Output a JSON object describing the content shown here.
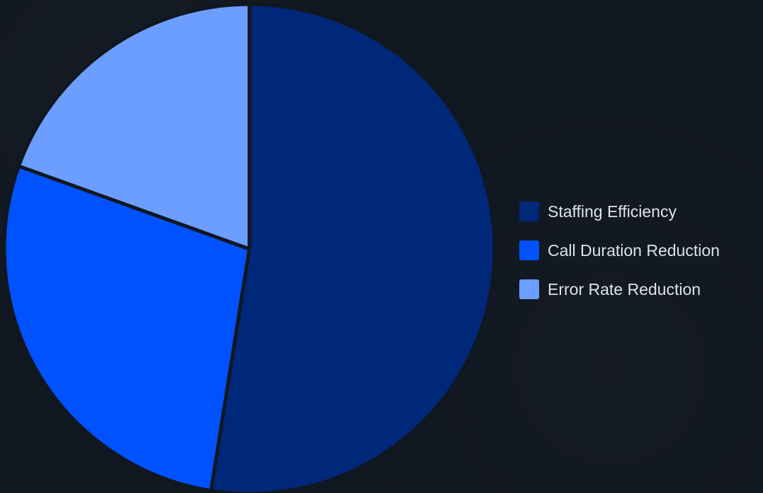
{
  "chart_data": {
    "type": "pie",
    "title": "",
    "categories": [
      "Staffing Efficiency",
      "Call Duration Reduction",
      "Error Rate Reduction"
    ],
    "values": [
      52.5,
      28.0,
      19.5
    ],
    "colors": [
      "#00287a",
      "#0052ff",
      "#6b9eff"
    ],
    "start_angle_deg": 0,
    "direction": "clockwise",
    "legend_position": "right",
    "background": "#111720",
    "separator_color": "#111720"
  },
  "legend": {
    "items": [
      {
        "label": "Staffing Efficiency",
        "color": "#00287a"
      },
      {
        "label": "Call Duration Reduction",
        "color": "#0052ff"
      },
      {
        "label": "Error Rate Reduction",
        "color": "#6b9eff"
      }
    ]
  }
}
